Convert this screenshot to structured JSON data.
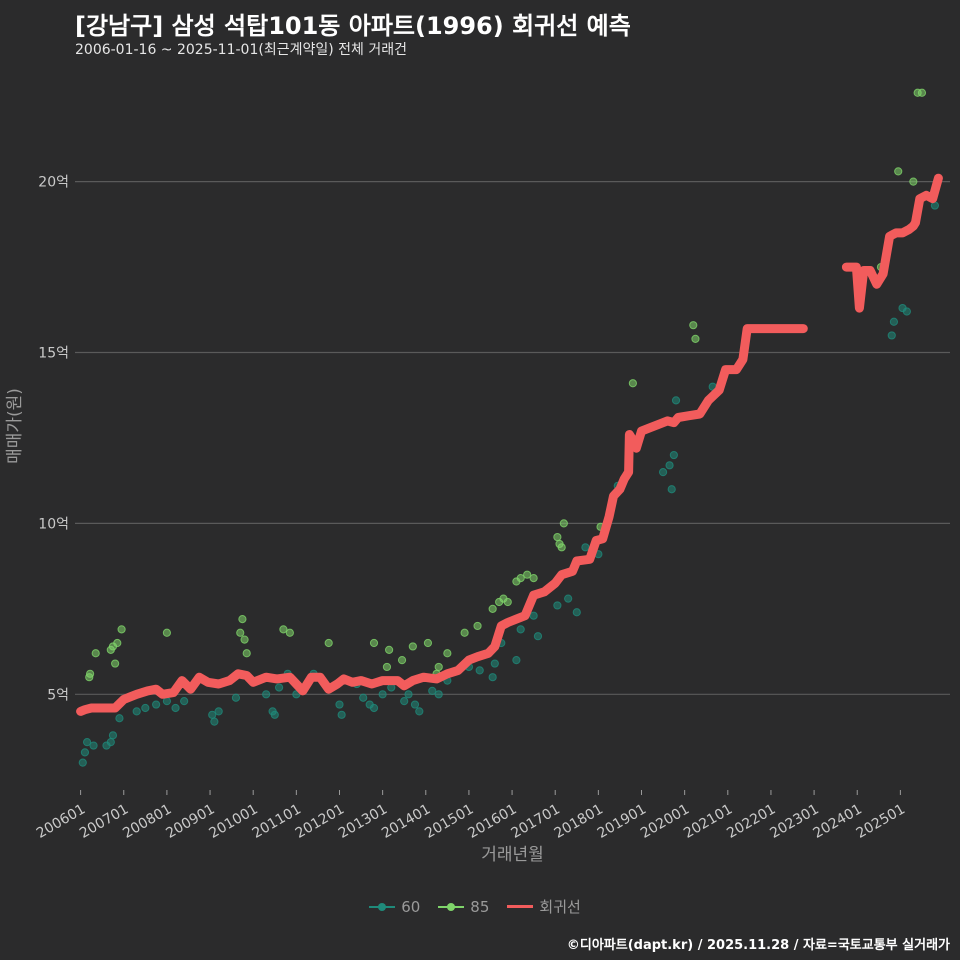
{
  "title": "[강남구] 삼성 석탑101동 아파트(1996) 회귀선 예측",
  "subtitle": "2006-01-16 ~ 2025-11-01(최근계약일) 전체 거래건",
  "footer": "©디아파트(dapt.kr) / 2025.11.28 / 자료=국토교통부 실거래가",
  "colors": {
    "background": "#2b2b2c",
    "grid": "#5a5a5a",
    "s60": "#1f8a7a",
    "s85": "#7fd46a",
    "regression": "#f25c5c"
  },
  "chart_data": {
    "type": "scatter",
    "title": "[강남구] 삼성 석탑101동 아파트(1996) 회귀선 예측",
    "xlabel": "거래년월",
    "ylabel": "매매가(원)",
    "ylim": [
      2.2,
      23.5
    ],
    "xlim": [
      2005.87,
      2026.15
    ],
    "yticks": [
      {
        "v": 5,
        "label": "5억"
      },
      {
        "v": 10,
        "label": "10억"
      },
      {
        "v": 15,
        "label": "15억"
      },
      {
        "v": 20,
        "label": "20억"
      }
    ],
    "xticks": [
      {
        "v": 2006.0,
        "label": "200601"
      },
      {
        "v": 2007.0,
        "label": "200701"
      },
      {
        "v": 2008.0,
        "label": "200801"
      },
      {
        "v": 2009.0,
        "label": "200901"
      },
      {
        "v": 2010.0,
        "label": "201001"
      },
      {
        "v": 2011.0,
        "label": "201101"
      },
      {
        "v": 2012.0,
        "label": "201201"
      },
      {
        "v": 2013.0,
        "label": "201301"
      },
      {
        "v": 2014.0,
        "label": "201401"
      },
      {
        "v": 2015.0,
        "label": "201501"
      },
      {
        "v": 2016.0,
        "label": "201601"
      },
      {
        "v": 2017.0,
        "label": "201701"
      },
      {
        "v": 2018.0,
        "label": "201801"
      },
      {
        "v": 2019.0,
        "label": "201901"
      },
      {
        "v": 2020.0,
        "label": "202001"
      },
      {
        "v": 2021.0,
        "label": "202101"
      },
      {
        "v": 2022.0,
        "label": "202201"
      },
      {
        "v": 2023.0,
        "label": "202301"
      },
      {
        "v": 2024.0,
        "label": "202401"
      },
      {
        "v": 2025.0,
        "label": "202501"
      }
    ],
    "legend": [
      {
        "name": "60",
        "kind": "point",
        "color": "#1f8a7a"
      },
      {
        "name": "85",
        "kind": "point",
        "color": "#7fd46a"
      },
      {
        "name": "회귀선",
        "kind": "line",
        "color": "#f25c5c"
      }
    ],
    "series": [
      {
        "name": "60",
        "points": [
          [
            2006.05,
            3.0
          ],
          [
            2006.1,
            3.3
          ],
          [
            2006.15,
            3.6
          ],
          [
            2006.3,
            3.5
          ],
          [
            2006.6,
            3.5
          ],
          [
            2006.7,
            3.6
          ],
          [
            2006.75,
            3.8
          ],
          [
            2006.9,
            4.3
          ],
          [
            2007.3,
            4.5
          ],
          [
            2007.5,
            4.6
          ],
          [
            2007.75,
            4.7
          ],
          [
            2008.0,
            4.8
          ],
          [
            2008.2,
            4.6
          ],
          [
            2008.4,
            4.8
          ],
          [
            2009.05,
            4.4
          ],
          [
            2009.1,
            4.2
          ],
          [
            2009.2,
            4.5
          ],
          [
            2009.6,
            4.9
          ],
          [
            2010.3,
            5.0
          ],
          [
            2010.45,
            4.5
          ],
          [
            2010.5,
            4.4
          ],
          [
            2010.6,
            5.2
          ],
          [
            2010.8,
            5.6
          ],
          [
            2011.0,
            5.0
          ],
          [
            2011.4,
            5.6
          ],
          [
            2011.8,
            5.2
          ],
          [
            2012.0,
            4.7
          ],
          [
            2012.05,
            4.4
          ],
          [
            2012.4,
            5.3
          ],
          [
            2012.55,
            4.9
          ],
          [
            2012.7,
            4.7
          ],
          [
            2012.8,
            4.6
          ],
          [
            2013.0,
            5.0
          ],
          [
            2013.2,
            5.2
          ],
          [
            2013.5,
            4.8
          ],
          [
            2013.6,
            5.0
          ],
          [
            2013.75,
            4.7
          ],
          [
            2013.85,
            4.5
          ],
          [
            2014.15,
            5.1
          ],
          [
            2014.3,
            5.0
          ],
          [
            2014.5,
            5.4
          ],
          [
            2015.0,
            5.8
          ],
          [
            2015.25,
            5.7
          ],
          [
            2015.55,
            5.5
          ],
          [
            2015.6,
            5.9
          ],
          [
            2015.75,
            6.5
          ],
          [
            2016.1,
            6.0
          ],
          [
            2016.2,
            6.9
          ],
          [
            2016.5,
            7.3
          ],
          [
            2016.6,
            6.7
          ],
          [
            2017.05,
            7.6
          ],
          [
            2017.3,
            7.8
          ],
          [
            2017.5,
            7.4
          ],
          [
            2017.7,
            9.3
          ],
          [
            2018.0,
            9.1
          ],
          [
            2018.45,
            11.1
          ],
          [
            2019.5,
            11.5
          ],
          [
            2019.65,
            11.7
          ],
          [
            2019.7,
            11.0
          ],
          [
            2019.75,
            12.0
          ],
          [
            2019.8,
            13.6
          ],
          [
            2020.65,
            14.0
          ],
          [
            2024.8,
            15.5
          ],
          [
            2024.85,
            15.9
          ],
          [
            2025.05,
            16.3
          ],
          [
            2025.15,
            16.2
          ],
          [
            2025.8,
            19.3
          ]
        ]
      },
      {
        "name": "85",
        "points": [
          [
            2006.2,
            5.5
          ],
          [
            2006.22,
            5.6
          ],
          [
            2006.35,
            6.2
          ],
          [
            2006.7,
            6.3
          ],
          [
            2006.75,
            6.4
          ],
          [
            2006.8,
            5.9
          ],
          [
            2006.85,
            6.5
          ],
          [
            2006.95,
            6.9
          ],
          [
            2008.0,
            6.8
          ],
          [
            2009.7,
            6.8
          ],
          [
            2009.75,
            7.2
          ],
          [
            2009.8,
            6.6
          ],
          [
            2009.85,
            6.2
          ],
          [
            2010.7,
            6.9
          ],
          [
            2010.85,
            6.8
          ],
          [
            2011.75,
            6.5
          ],
          [
            2012.8,
            6.5
          ],
          [
            2013.1,
            5.8
          ],
          [
            2013.15,
            6.3
          ],
          [
            2013.45,
            6.0
          ],
          [
            2013.7,
            6.4
          ],
          [
            2014.05,
            6.5
          ],
          [
            2014.25,
            5.6
          ],
          [
            2014.3,
            5.8
          ],
          [
            2014.5,
            6.2
          ],
          [
            2014.9,
            6.8
          ],
          [
            2015.2,
            7.0
          ],
          [
            2015.55,
            7.5
          ],
          [
            2015.7,
            7.7
          ],
          [
            2015.8,
            7.8
          ],
          [
            2015.9,
            7.7
          ],
          [
            2016.1,
            8.3
          ],
          [
            2016.2,
            8.4
          ],
          [
            2016.35,
            8.5
          ],
          [
            2016.5,
            8.4
          ],
          [
            2017.05,
            9.6
          ],
          [
            2017.1,
            9.4
          ],
          [
            2017.15,
            9.3
          ],
          [
            2017.2,
            10.0
          ],
          [
            2018.05,
            9.9
          ],
          [
            2018.8,
            14.1
          ],
          [
            2020.2,
            15.8
          ],
          [
            2020.25,
            15.4
          ],
          [
            2024.55,
            17.5
          ],
          [
            2024.95,
            20.3
          ],
          [
            2025.3,
            20.0
          ],
          [
            2025.4,
            22.6
          ],
          [
            2025.5,
            22.6
          ]
        ]
      }
    ],
    "regression": {
      "name": "회귀선",
      "segments": [
        [
          [
            2006.0,
            4.5
          ],
          [
            2006.1,
            4.55
          ],
          [
            2006.25,
            4.6
          ],
          [
            2006.5,
            4.6
          ],
          [
            2006.8,
            4.6
          ],
          [
            2007.0,
            4.85
          ],
          [
            2007.3,
            5.0
          ],
          [
            2007.55,
            5.1
          ],
          [
            2007.75,
            5.15
          ],
          [
            2007.9,
            5.0
          ],
          [
            2008.15,
            5.05
          ],
          [
            2008.35,
            5.4
          ],
          [
            2008.55,
            5.15
          ],
          [
            2008.75,
            5.5
          ],
          [
            2008.95,
            5.35
          ],
          [
            2009.2,
            5.3
          ],
          [
            2009.45,
            5.4
          ],
          [
            2009.65,
            5.6
          ],
          [
            2009.85,
            5.55
          ],
          [
            2010.0,
            5.35
          ],
          [
            2010.3,
            5.5
          ],
          [
            2010.55,
            5.45
          ],
          [
            2010.85,
            5.5
          ],
          [
            2011.0,
            5.3
          ],
          [
            2011.15,
            5.1
          ],
          [
            2011.35,
            5.5
          ],
          [
            2011.55,
            5.5
          ],
          [
            2011.75,
            5.15
          ],
          [
            2011.95,
            5.3
          ],
          [
            2012.1,
            5.45
          ],
          [
            2012.3,
            5.35
          ],
          [
            2012.5,
            5.4
          ],
          [
            2012.75,
            5.3
          ],
          [
            2013.0,
            5.4
          ],
          [
            2013.35,
            5.4
          ],
          [
            2013.5,
            5.25
          ],
          [
            2013.7,
            5.4
          ],
          [
            2013.95,
            5.5
          ],
          [
            2014.25,
            5.45
          ],
          [
            2014.5,
            5.6
          ],
          [
            2014.75,
            5.7
          ],
          [
            2015.0,
            6.0
          ],
          [
            2015.2,
            6.1
          ],
          [
            2015.45,
            6.2
          ],
          [
            2015.6,
            6.4
          ],
          [
            2015.75,
            7.0
          ],
          [
            2015.9,
            7.1
          ],
          [
            2016.1,
            7.2
          ],
          [
            2016.3,
            7.3
          ],
          [
            2016.5,
            7.9
          ],
          [
            2016.75,
            8.0
          ],
          [
            2017.0,
            8.25
          ],
          [
            2017.15,
            8.5
          ],
          [
            2017.4,
            8.6
          ],
          [
            2017.5,
            8.9
          ],
          [
            2017.8,
            8.95
          ],
          [
            2017.95,
            9.5
          ],
          [
            2018.1,
            9.55
          ],
          [
            2018.25,
            10.2
          ],
          [
            2018.35,
            10.8
          ],
          [
            2018.5,
            11.0
          ],
          [
            2018.6,
            11.3
          ],
          [
            2018.7,
            11.5
          ],
          [
            2018.72,
            12.6
          ],
          [
            2018.82,
            12.4
          ],
          [
            2018.88,
            12.2
          ],
          [
            2019.0,
            12.7
          ],
          [
            2019.2,
            12.8
          ],
          [
            2019.4,
            12.9
          ],
          [
            2019.6,
            13.0
          ],
          [
            2019.75,
            12.95
          ],
          [
            2019.85,
            13.1
          ],
          [
            2020.1,
            13.15
          ],
          [
            2020.35,
            13.2
          ],
          [
            2020.55,
            13.6
          ],
          [
            2020.8,
            13.9
          ],
          [
            2020.95,
            14.5
          ],
          [
            2021.2,
            14.5
          ],
          [
            2021.35,
            14.8
          ],
          [
            2021.45,
            15.7
          ],
          [
            2021.7,
            15.7
          ],
          [
            2022.0,
            15.7
          ],
          [
            2022.5,
            15.7
          ],
          [
            2022.75,
            15.7
          ]
        ],
        [
          [
            2023.75,
            17.5
          ],
          [
            2023.98,
            17.5
          ],
          [
            2024.05,
            16.3
          ],
          [
            2024.15,
            17.4
          ],
          [
            2024.3,
            17.4
          ],
          [
            2024.45,
            17.0
          ],
          [
            2024.6,
            17.3
          ],
          [
            2024.75,
            18.4
          ],
          [
            2024.9,
            18.5
          ],
          [
            2025.05,
            18.5
          ],
          [
            2025.2,
            18.6
          ],
          [
            2025.3,
            18.7
          ],
          [
            2025.35,
            18.8
          ],
          [
            2025.45,
            19.5
          ],
          [
            2025.6,
            19.6
          ],
          [
            2025.75,
            19.5
          ],
          [
            2025.88,
            20.1
          ]
        ]
      ]
    }
  }
}
